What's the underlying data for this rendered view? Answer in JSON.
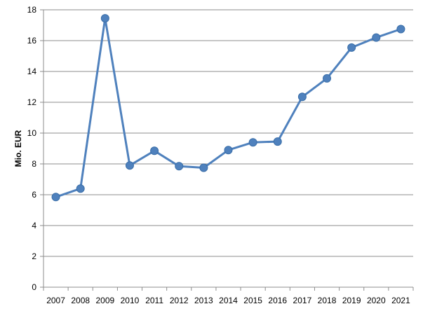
{
  "chart_data": {
    "type": "line",
    "title": "",
    "xlabel": "",
    "ylabel": "Mio. EUR",
    "categories": [
      "2007",
      "2008",
      "2009",
      "2010",
      "2011",
      "2012",
      "2013",
      "2014",
      "2015",
      "2016",
      "2017",
      "2018",
      "2019",
      "2020",
      "2021"
    ],
    "series": [
      {
        "values": [
          5.85,
          6.4,
          17.45,
          7.9,
          8.85,
          7.85,
          7.75,
          8.9,
          9.4,
          9.45,
          12.35,
          13.55,
          15.55,
          16.2,
          16.75
        ],
        "color": "#4F81BD"
      }
    ],
    "ylim": [
      0,
      18
    ],
    "yticks": [
      0,
      2,
      4,
      6,
      8,
      10,
      12,
      14,
      16,
      18
    ],
    "grid": true,
    "legend": "none"
  }
}
